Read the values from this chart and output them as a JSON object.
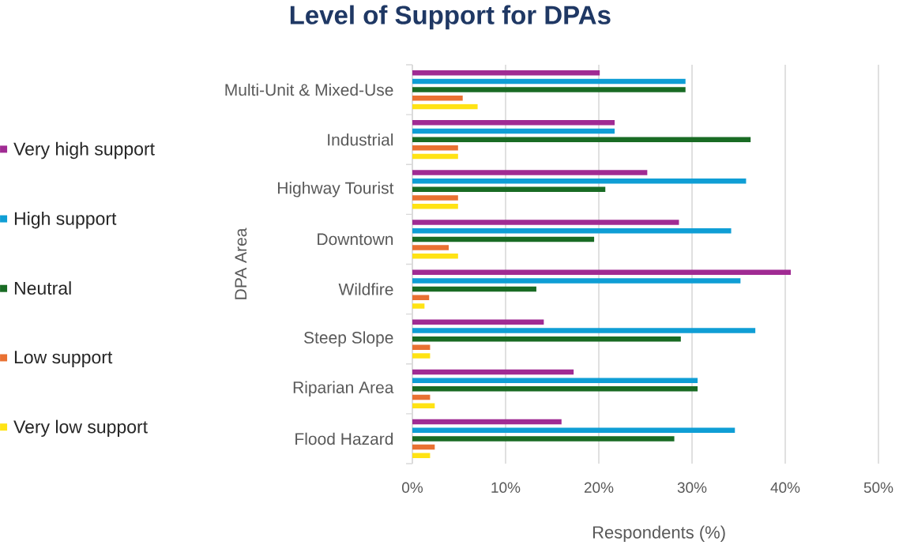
{
  "chart_data": {
    "type": "bar",
    "orientation": "horizontal",
    "title": "Level of Support for DPAs",
    "xlabel": "Respondents (%)",
    "ylabel": "DPA Area",
    "categories": [
      "Multi-Unit & Mixed-Use",
      "Industrial",
      "Highway Tourist",
      "Downtown",
      "Wildfire",
      "Steep Slope",
      "Riparian Area",
      "Flood Hazard"
    ],
    "series": [
      {
        "name": "Very high support",
        "color": "#a02b93",
        "values": [
          20.1,
          21.7,
          25.2,
          28.6,
          40.6,
          14.1,
          17.3,
          16.0
        ]
      },
      {
        "name": "High support",
        "color": "#0f9ed5",
        "values": [
          29.3,
          21.7,
          35.8,
          34.2,
          35.2,
          36.8,
          30.6,
          34.6
        ]
      },
      {
        "name": "Neutral",
        "color": "#196b24",
        "values": [
          29.3,
          36.3,
          20.7,
          19.5,
          13.3,
          28.8,
          30.6,
          28.1
        ]
      },
      {
        "name": "Low support",
        "color": "#e97132",
        "values": [
          5.4,
          4.9,
          4.9,
          3.9,
          1.8,
          1.9,
          1.9,
          2.4
        ]
      },
      {
        "name": "Very low support",
        "color": "#ffe314",
        "values": [
          7.0,
          4.9,
          4.9,
          4.9,
          1.3,
          1.9,
          2.4,
          1.9
        ]
      }
    ],
    "xlim": [
      0,
      50
    ],
    "xticks": [
      {
        "value": 0,
        "label": "0%"
      },
      {
        "value": 10,
        "label": "10%"
      },
      {
        "value": 20,
        "label": "20%"
      },
      {
        "value": 30,
        "label": "30%"
      },
      {
        "value": 40,
        "label": "40%"
      },
      {
        "value": 50,
        "label": "50%"
      }
    ],
    "grid": "x",
    "legend": "left"
  }
}
